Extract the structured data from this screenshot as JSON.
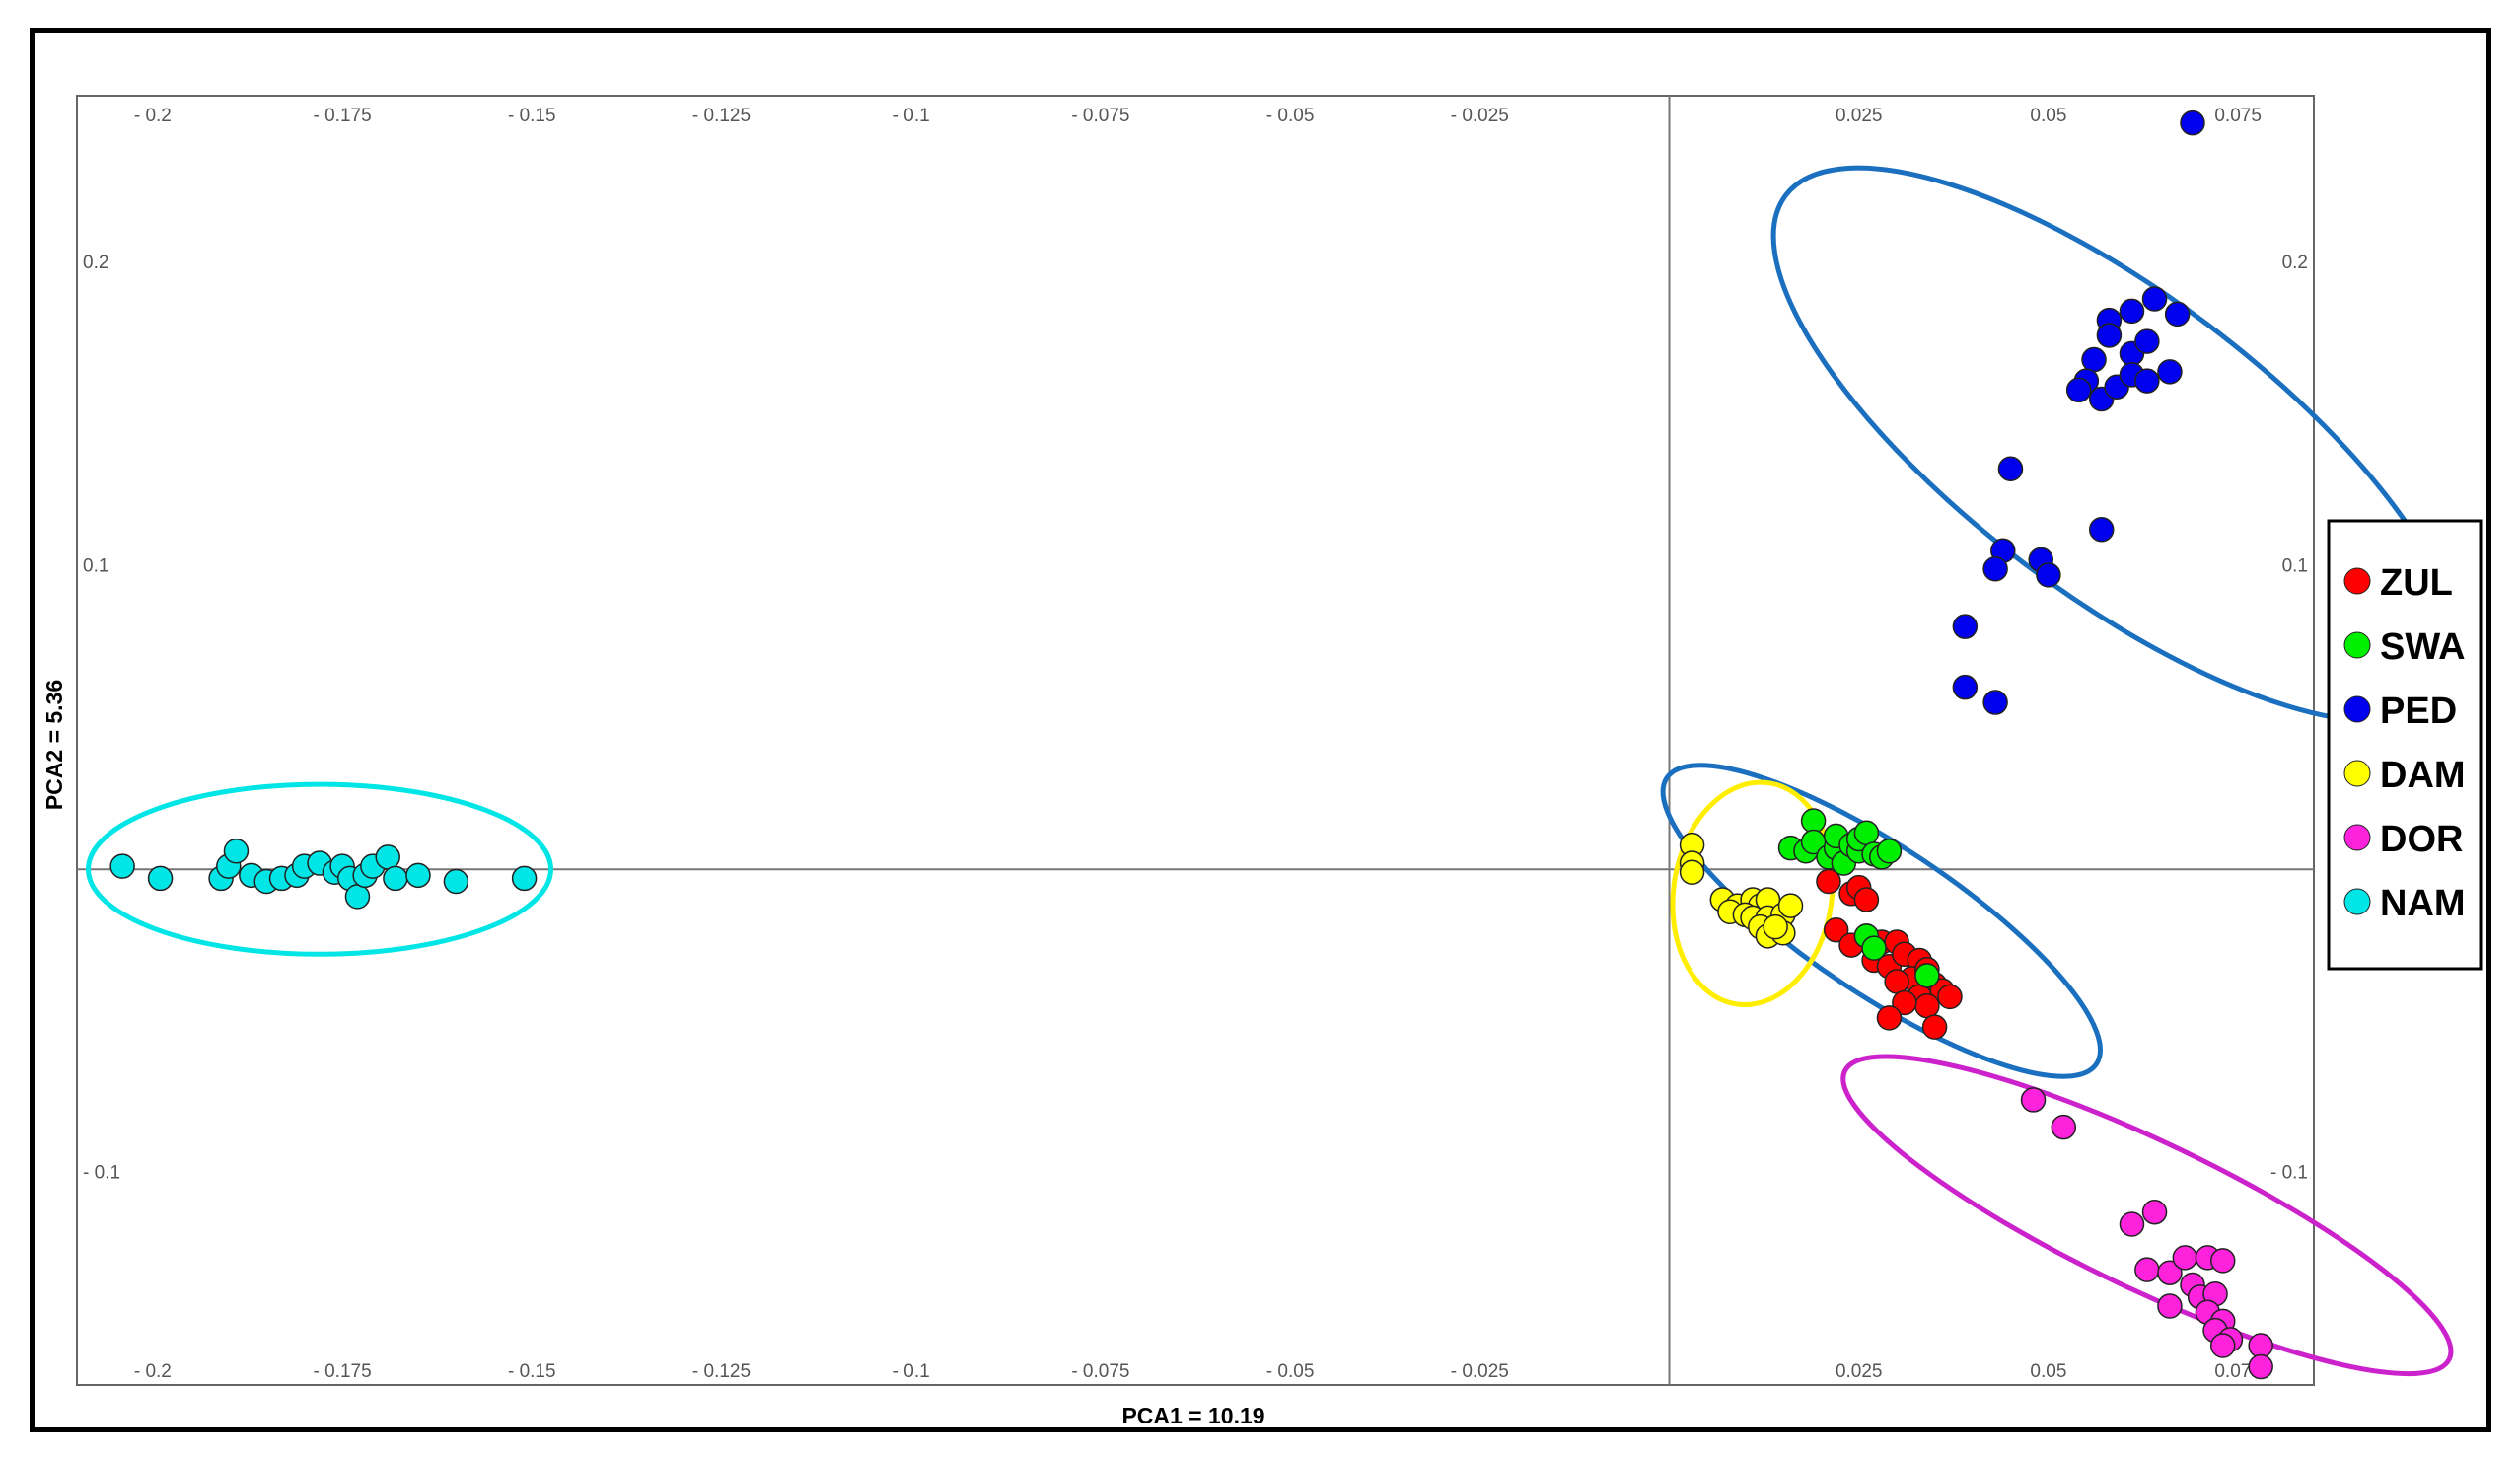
{
  "chart_data": {
    "type": "scatter",
    "xlabel": "PCA1 = 10.19",
    "ylabel": "PCA2 = 5.36",
    "xlim": [
      -0.21,
      0.085
    ],
    "ylim": [
      -0.17,
      0.255
    ],
    "x_ticks": [
      {
        "value": -0.2,
        "label": "- 0.2"
      },
      {
        "value": -0.175,
        "label": "- 0.175"
      },
      {
        "value": -0.15,
        "label": "- 0.15"
      },
      {
        "value": -0.125,
        "label": "- 0.125"
      },
      {
        "value": -0.1,
        "label": "- 0.1"
      },
      {
        "value": -0.075,
        "label": "- 0.075"
      },
      {
        "value": -0.05,
        "label": "- 0.05"
      },
      {
        "value": -0.025,
        "label": "- 0.025"
      },
      {
        "value": 0.025,
        "label": "0.025"
      },
      {
        "value": 0.05,
        "label": "0.05"
      },
      {
        "value": 0.075,
        "label": "0.075"
      }
    ],
    "y_ticks": [
      {
        "value": 0.2,
        "label": "0.2"
      },
      {
        "value": 0.1,
        "label": "0.1"
      },
      {
        "value": -0.1,
        "label": "- 0.1"
      }
    ],
    "grid": false,
    "legend_position": "right",
    "series": [
      {
        "name": "ZUL",
        "color": "#ff0000",
        "points": [
          [
            0.021,
            -0.004
          ],
          [
            0.024,
            -0.008
          ],
          [
            0.025,
            -0.006
          ],
          [
            0.026,
            -0.01
          ],
          [
            0.022,
            -0.02
          ],
          [
            0.024,
            -0.025
          ],
          [
            0.026,
            -0.022
          ],
          [
            0.028,
            -0.024
          ],
          [
            0.03,
            -0.024
          ],
          [
            0.027,
            -0.03
          ],
          [
            0.029,
            -0.032
          ],
          [
            0.031,
            -0.028
          ],
          [
            0.033,
            -0.03
          ],
          [
            0.032,
            -0.036
          ],
          [
            0.03,
            -0.037
          ],
          [
            0.034,
            -0.033
          ],
          [
            0.035,
            -0.038
          ],
          [
            0.033,
            -0.042
          ],
          [
            0.036,
            -0.04
          ],
          [
            0.034,
            -0.045
          ],
          [
            0.031,
            -0.044
          ],
          [
            0.029,
            -0.049
          ],
          [
            0.035,
            -0.052
          ],
          [
            0.037,
            -0.042
          ]
        ]
      },
      {
        "name": "SWA",
        "color": "#00ee00",
        "points": [
          [
            0.016,
            0.007
          ],
          [
            0.018,
            0.006
          ],
          [
            0.019,
            0.016
          ],
          [
            0.019,
            0.009
          ],
          [
            0.021,
            0.004
          ],
          [
            0.022,
            0.007
          ],
          [
            0.022,
            0.011
          ],
          [
            0.023,
            0.002
          ],
          [
            0.024,
            0.008
          ],
          [
            0.025,
            0.006
          ],
          [
            0.025,
            0.01
          ],
          [
            0.026,
            0.012
          ],
          [
            0.027,
            0.005
          ],
          [
            0.028,
            0.004
          ],
          [
            0.029,
            0.006
          ],
          [
            0.026,
            -0.022
          ],
          [
            0.027,
            -0.026
          ],
          [
            0.034,
            -0.035
          ]
        ]
      },
      {
        "name": "PED",
        "color": "#0000ee",
        "points": [
          [
            0.069,
            0.246
          ],
          [
            0.058,
            0.181
          ],
          [
            0.061,
            0.184
          ],
          [
            0.064,
            0.188
          ],
          [
            0.067,
            0.183
          ],
          [
            0.058,
            0.176
          ],
          [
            0.056,
            0.168
          ],
          [
            0.061,
            0.17
          ],
          [
            0.063,
            0.174
          ],
          [
            0.066,
            0.164
          ],
          [
            0.055,
            0.161
          ],
          [
            0.057,
            0.155
          ],
          [
            0.059,
            0.159
          ],
          [
            0.061,
            0.163
          ],
          [
            0.063,
            0.161
          ],
          [
            0.054,
            0.158
          ],
          [
            0.045,
            0.132
          ],
          [
            0.057,
            0.112
          ],
          [
            0.044,
            0.105
          ],
          [
            0.043,
            0.099
          ],
          [
            0.049,
            0.102
          ],
          [
            0.05,
            0.097
          ],
          [
            0.039,
            0.08
          ],
          [
            0.039,
            0.06
          ],
          [
            0.043,
            0.055
          ]
        ]
      },
      {
        "name": "DAM",
        "color": "#ffff00",
        "points": [
          [
            0.003,
            0.008
          ],
          [
            0.003,
            0.002
          ],
          [
            0.003,
            -0.001
          ],
          [
            0.007,
            -0.01
          ],
          [
            0.009,
            -0.012
          ],
          [
            0.011,
            -0.01
          ],
          [
            0.012,
            -0.012
          ],
          [
            0.013,
            -0.01
          ],
          [
            0.008,
            -0.014
          ],
          [
            0.01,
            -0.015
          ],
          [
            0.011,
            -0.016
          ],
          [
            0.013,
            -0.016
          ],
          [
            0.015,
            -0.015
          ],
          [
            0.016,
            -0.012
          ],
          [
            0.012,
            -0.019
          ],
          [
            0.013,
            -0.022
          ],
          [
            0.015,
            -0.021
          ],
          [
            0.014,
            -0.019
          ]
        ]
      },
      {
        "name": "DOR",
        "color": "#ff22dd",
        "points": [
          [
            0.048,
            -0.076
          ],
          [
            0.052,
            -0.085
          ],
          [
            0.061,
            -0.117
          ],
          [
            0.064,
            -0.113
          ],
          [
            0.063,
            -0.132
          ],
          [
            0.066,
            -0.133
          ],
          [
            0.068,
            -0.128
          ],
          [
            0.071,
            -0.128
          ],
          [
            0.073,
            -0.129
          ],
          [
            0.069,
            -0.137
          ],
          [
            0.07,
            -0.141
          ],
          [
            0.072,
            -0.14
          ],
          [
            0.066,
            -0.144
          ],
          [
            0.071,
            -0.146
          ],
          [
            0.073,
            -0.149
          ],
          [
            0.072,
            -0.152
          ],
          [
            0.074,
            -0.155
          ],
          [
            0.073,
            -0.157
          ],
          [
            0.078,
            -0.157
          ],
          [
            0.078,
            -0.164
          ]
        ]
      },
      {
        "name": "NAM",
        "color": "#00e5e5",
        "points": [
          [
            -0.204,
            0.001
          ],
          [
            -0.199,
            -0.003
          ],
          [
            -0.191,
            -0.003
          ],
          [
            -0.19,
            0.001
          ],
          [
            -0.189,
            0.006
          ],
          [
            -0.187,
            -0.002
          ],
          [
            -0.185,
            -0.004
          ],
          [
            -0.183,
            -0.003
          ],
          [
            -0.181,
            -0.002
          ],
          [
            -0.18,
            0.001
          ],
          [
            -0.178,
            0.002
          ],
          [
            -0.176,
            -0.001
          ],
          [
            -0.175,
            0.001
          ],
          [
            -0.174,
            -0.003
          ],
          [
            -0.173,
            -0.009
          ],
          [
            -0.172,
            -0.002
          ],
          [
            -0.171,
            0.001
          ],
          [
            -0.169,
            0.004
          ],
          [
            -0.168,
            -0.003
          ],
          [
            -0.165,
            -0.002
          ],
          [
            -0.16,
            -0.004
          ],
          [
            -0.151,
            -0.003
          ]
        ]
      }
    ],
    "ellipses": [
      {
        "color": "#00e5e5",
        "cx": -0.178,
        "cy": 0.0,
        "rx": 0.0305,
        "ry": 0.028,
        "angle": 0
      },
      {
        "color": "#1a6fbf",
        "cx": 0.059,
        "cy": 0.14,
        "rx": 0.093,
        "ry": 0.022,
        "angle": -62
      },
      {
        "color": "#1a6fbf",
        "cx": 0.028,
        "cy": -0.017,
        "rx": 0.055,
        "ry": 0.011,
        "angle": -59
      },
      {
        "color": "#ffee00",
        "cx": 0.011,
        "cy": -0.008,
        "rx": 0.011,
        "ry": 0.029,
        "angle": -20
      },
      {
        "color": "#cc22cc",
        "cx": 0.063,
        "cy": -0.114,
        "rx": 0.062,
        "ry": 0.012,
        "angle": -50
      }
    ]
  }
}
